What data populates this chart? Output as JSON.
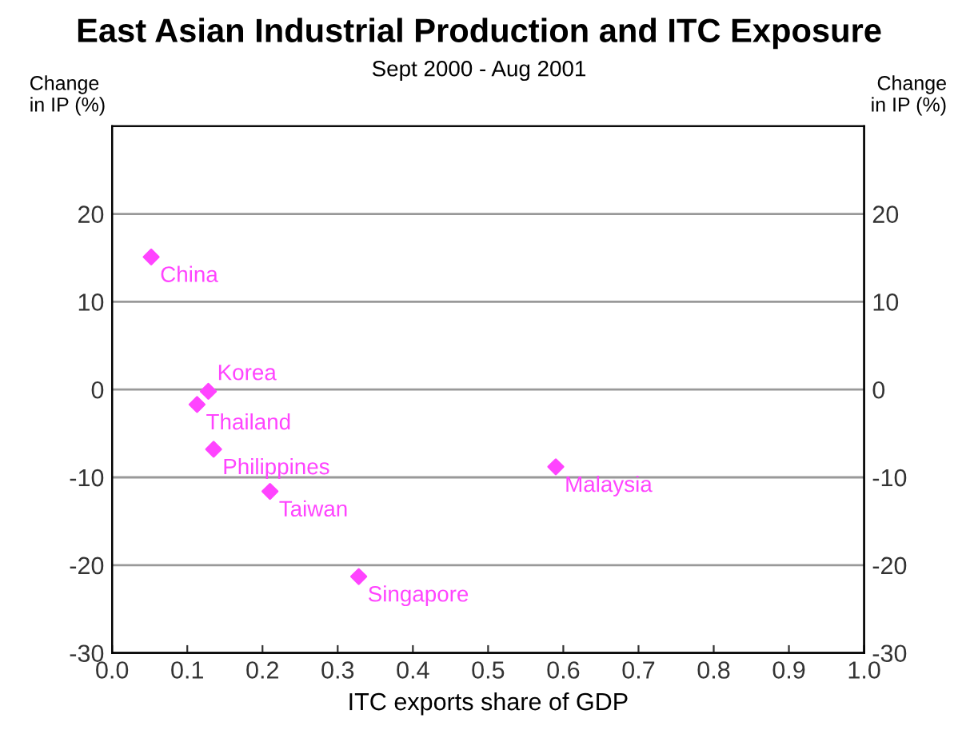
{
  "chart_data": {
    "type": "scatter",
    "title": "East Asian Industrial Production and ITC Exposure",
    "subtitle": "Sept 2000 - Aug 2001",
    "xlabel": "ITC exports share of GDP",
    "ylabel": "Change\nin IP (%)",
    "y2label": "Change\nin IP (%)",
    "x": [
      0.052,
      0.128,
      0.113,
      0.135,
      0.21,
      0.328,
      0.59
    ],
    "values": [
      15.1,
      -0.2,
      -1.7,
      -6.8,
      -11.6,
      -21.3,
      -8.8
    ],
    "color": "#ff44ff",
    "marker": "diamond",
    "annotations": [
      {
        "text": "China",
        "x": 0.052,
        "y": 15.1
      },
      {
        "text": "Korea",
        "x": 0.128,
        "y": -0.2
      },
      {
        "text": "Thailand",
        "x": 0.113,
        "y": -1.7
      },
      {
        "text": "Philippines",
        "x": 0.135,
        "y": -6.8
      },
      {
        "text": "Taiwan",
        "x": 0.21,
        "y": -11.6
      },
      {
        "text": "Singapore",
        "x": 0.328,
        "y": -21.3
      },
      {
        "text": "Malaysia",
        "x": 0.59,
        "y": -8.8
      }
    ],
    "xlim": [
      0,
      1
    ],
    "xticks": [
      {
        "value": 0,
        "label": "0.0"
      },
      0.1,
      0.2,
      0.3,
      0.4,
      0.5,
      0.6,
      0.7,
      0.8,
      0.9,
      {
        "value": 1,
        "label": "1.0"
      }
    ],
    "ylim": [
      -30,
      30
    ],
    "yticks": [
      -30,
      -20,
      -10,
      0,
      10,
      20
    ],
    "y2lim": [
      -30,
      30
    ],
    "y2ticks": [
      -30,
      -20,
      -10,
      0,
      10,
      20
    ],
    "grid": "y"
  }
}
